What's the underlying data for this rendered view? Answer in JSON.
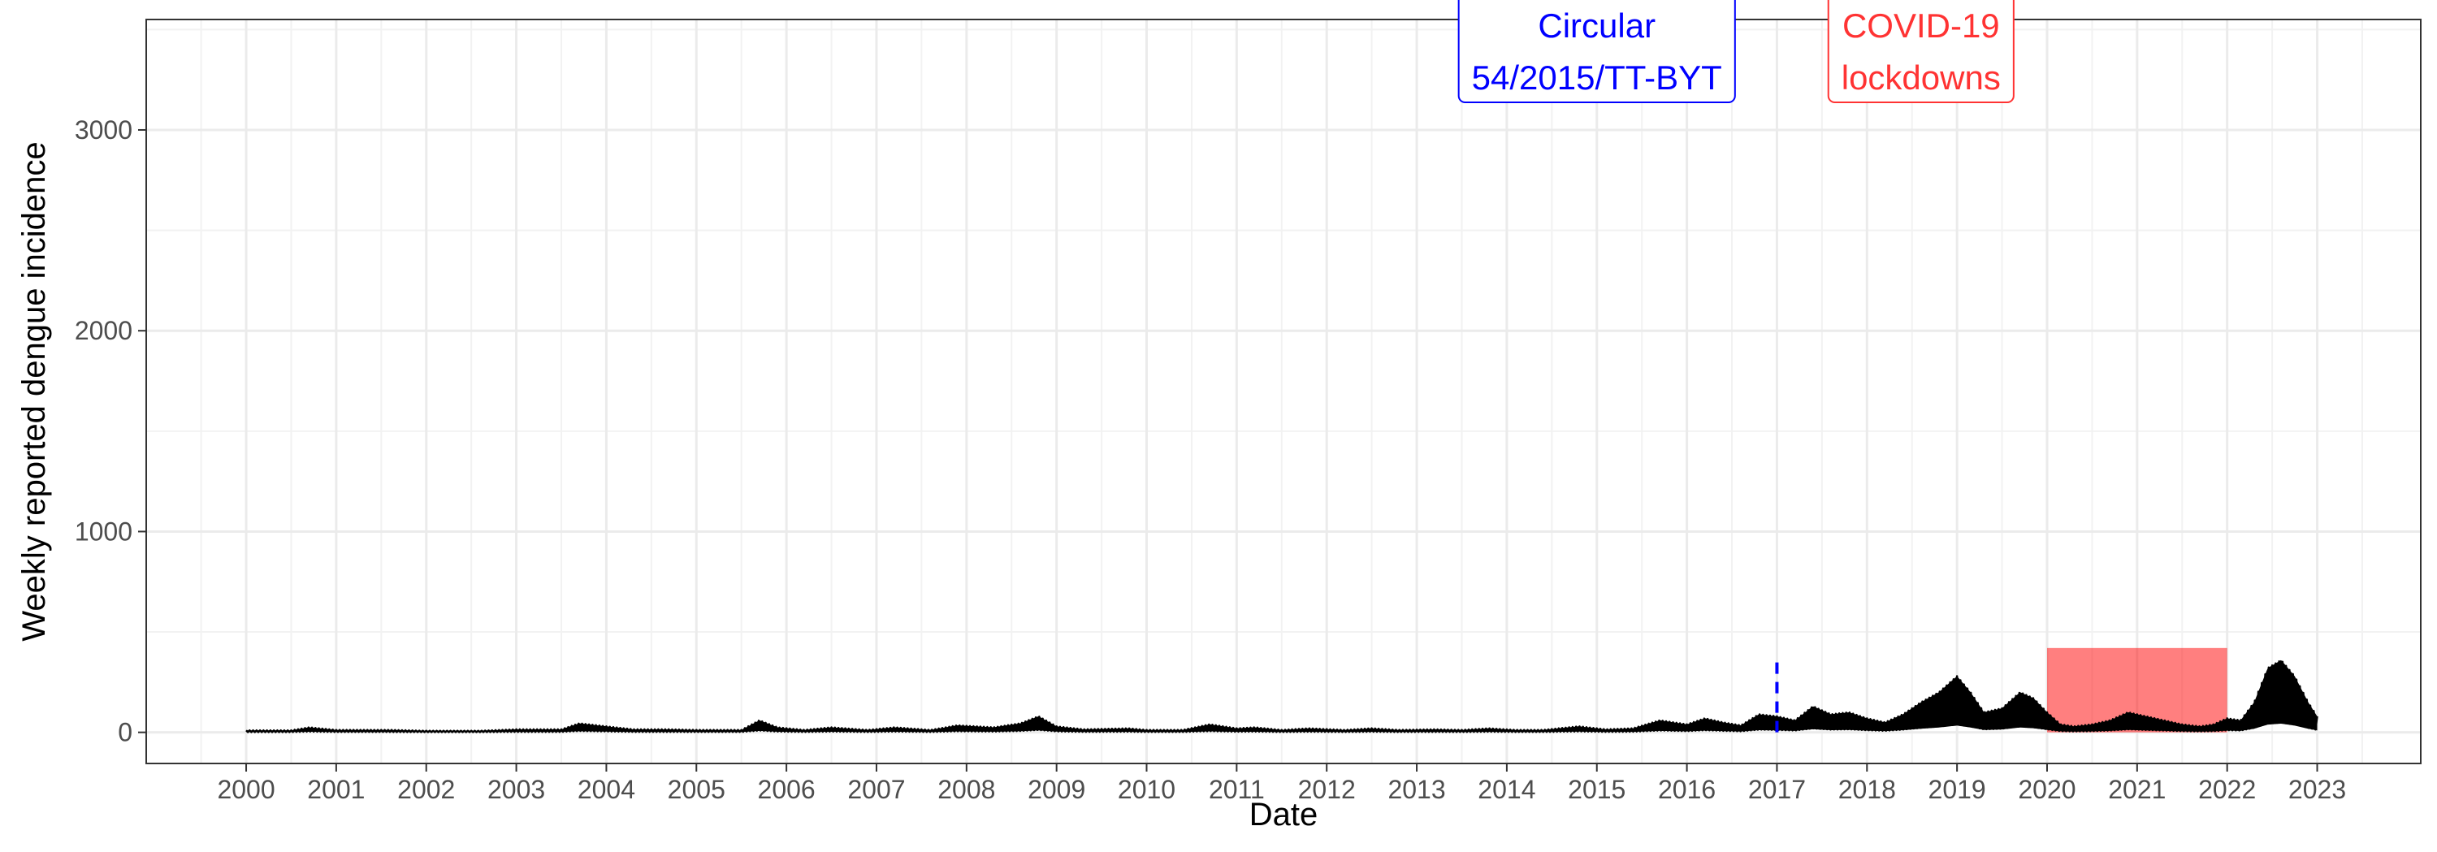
{
  "chart_data": {
    "type": "line",
    "title": "",
    "xlabel": "Date",
    "ylabel": "Weekly reported dengue incidence",
    "x_ticks": [
      "2000",
      "2001",
      "2002",
      "2003",
      "2004",
      "2005",
      "2006",
      "2007",
      "2008",
      "2009",
      "2010",
      "2011",
      "2012",
      "2013",
      "2014",
      "2015",
      "2016",
      "2017",
      "2018",
      "2019",
      "2020",
      "2021",
      "2022",
      "2023"
    ],
    "y_ticks": [
      0,
      1000,
      2000,
      3000
    ],
    "xlim": [
      1998.89,
      2024.15
    ],
    "ylim": [
      -155,
      3550
    ],
    "grid": true,
    "legend": "none",
    "series": [
      {
        "color": "#000000",
        "x": [
          2000.0,
          2000.5,
          2000.7,
          2001.0,
          2001.6,
          2002.0,
          2002.6,
          2003.0,
          2003.5,
          2003.7,
          2004.0,
          2004.3,
          2004.7,
          2005.0,
          2005.5,
          2005.7,
          2005.9,
          2006.2,
          2006.5,
          2006.9,
          2007.2,
          2007.6,
          2007.9,
          2008.3,
          2008.6,
          2008.8,
          2009.0,
          2009.3,
          2009.8,
          2010.0,
          2010.4,
          2010.7,
          2011.0,
          2011.2,
          2011.5,
          2011.8,
          2012.2,
          2012.5,
          2012.8,
          2013.2,
          2013.5,
          2013.8,
          2014.1,
          2014.4,
          2014.8,
          2015.1,
          2015.4,
          2015.7,
          2016.0,
          2016.2,
          2016.4,
          2016.6,
          2016.8,
          2017.0,
          2017.2,
          2017.4,
          2017.6,
          2017.8,
          2018.0,
          2018.2,
          2018.4,
          2018.6,
          2018.8,
          2019.0,
          2019.15,
          2019.3,
          2019.5,
          2019.7,
          2019.85,
          2020.0,
          2020.15,
          2020.3,
          2020.5,
          2020.7,
          2020.9,
          2021.1,
          2021.3,
          2021.5,
          2021.7,
          2021.85,
          2022.0,
          2022.15,
          2022.3,
          2022.45,
          2022.6,
          2022.75,
          2022.9,
          2023.0
        ],
        "y": [
          10,
          10,
          25,
          12,
          12,
          8,
          8,
          15,
          15,
          45,
          30,
          15,
          15,
          12,
          12,
          60,
          25,
          12,
          25,
          12,
          25,
          12,
          35,
          25,
          45,
          80,
          30,
          15,
          20,
          12,
          12,
          40,
          20,
          25,
          12,
          20,
          12,
          20,
          12,
          15,
          12,
          20,
          12,
          12,
          30,
          15,
          20,
          60,
          40,
          70,
          50,
          35,
          90,
          80,
          60,
          130,
          90,
          100,
          70,
          50,
          90,
          150,
          200,
          280,
          200,
          100,
          120,
          200,
          170,
          100,
          40,
          30,
          40,
          60,
          100,
          80,
          60,
          40,
          30,
          40,
          70,
          60,
          150,
          320,
          360,
          280,
          150,
          80
        ]
      }
    ],
    "annotations": {
      "vline": {
        "x": 2017.0,
        "color": "#0000ff",
        "ymax": 380
      },
      "rect": {
        "x0": 2020.0,
        "x1": 2022.0,
        "y0": 0,
        "y1": 420,
        "color": "#ff0000",
        "opacity": 0.5
      },
      "circular_label": {
        "lines": [
          "Circular",
          "54/2015/TT-BYT"
        ],
        "color": "#0000ff",
        "x": 2015.0
      },
      "covid_label": {
        "lines": [
          "COVID-19",
          "lockdowns"
        ],
        "color": "#ff3333",
        "x": 2018.6
      }
    }
  }
}
